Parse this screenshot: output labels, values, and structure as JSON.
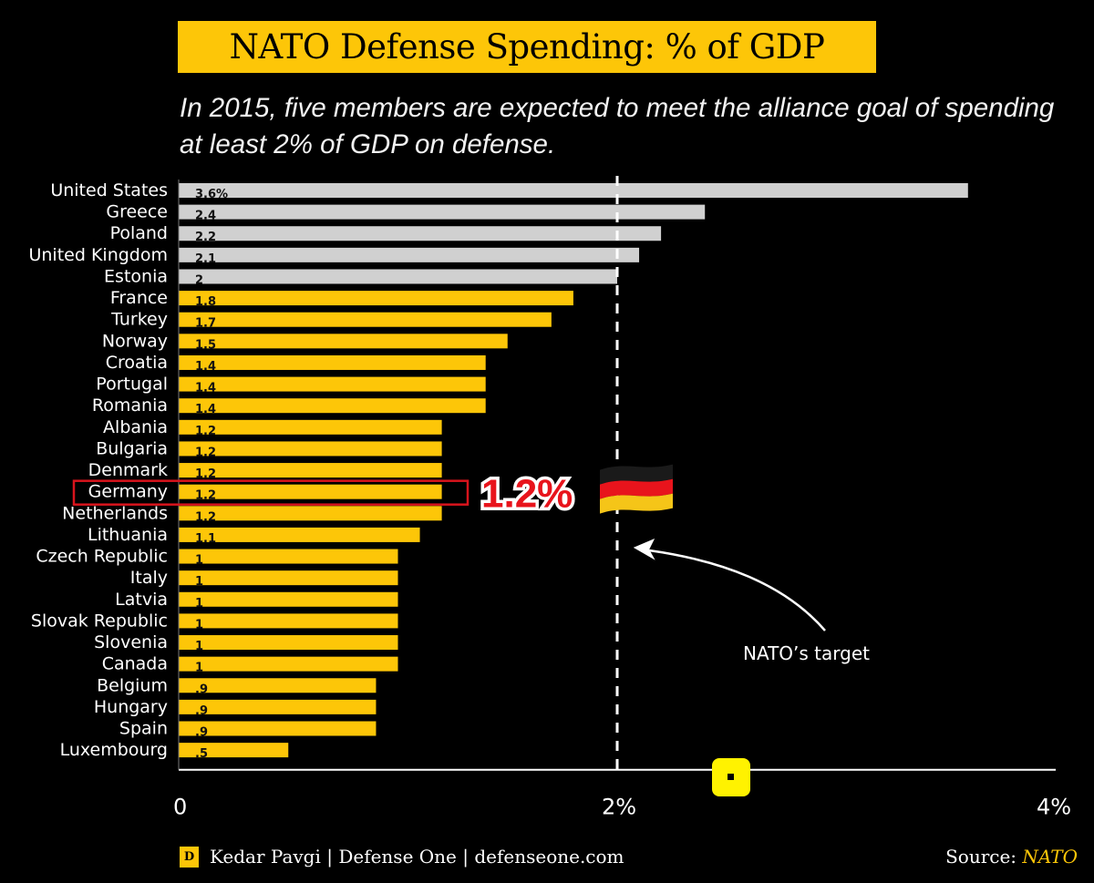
{
  "header": {
    "title": "NATO Defense Spending: % of GDP",
    "subtitle": "In 2015, five members are expected to meet the alliance goal of spending at least 2% of GDP on defense."
  },
  "colors": {
    "highlight_bar": "#fdc608",
    "meets_target_bar": "#d0d0d0",
    "background": "#000000",
    "callout_red": "#e8141c",
    "title_bg": "#fdc608"
  },
  "chart_data": {
    "type": "bar",
    "orientation": "horizontal",
    "title": "NATO Defense Spending: % of GDP",
    "subtitle": "In 2015, five members are expected to meet the alliance goal of spending at least 2% of GDP on defense.",
    "xlabel": "",
    "ylabel": "",
    "xlim": [
      0,
      4
    ],
    "x_ticks": [
      0,
      2,
      4
    ],
    "x_tick_labels": [
      "0",
      "2%",
      "4%"
    ],
    "grid": false,
    "reference_line": {
      "value": 2,
      "style": "dashed",
      "label": "NATO’s target"
    },
    "categories": [
      "United States",
      "Greece",
      "Poland",
      "United Kingdom",
      "Estonia",
      "France",
      "Turkey",
      "Norway",
      "Croatia",
      "Portugal",
      "Romania",
      "Albania",
      "Bulgaria",
      "Denmark",
      "Germany",
      "Netherlands",
      "Lithuania",
      "Czech Republic",
      "Italy",
      "Latvia",
      "Slovak Republic",
      "Slovenia",
      "Canada",
      "Belgium",
      "Hungary",
      "Spain",
      "Luxembourg"
    ],
    "values": [
      3.6,
      2.4,
      2.2,
      2.1,
      2.0,
      1.8,
      1.7,
      1.5,
      1.4,
      1.4,
      1.4,
      1.2,
      1.2,
      1.2,
      1.2,
      1.2,
      1.1,
      1.0,
      1.0,
      1.0,
      1.0,
      1.0,
      1.0,
      0.9,
      0.9,
      0.9,
      0.5
    ],
    "value_labels": [
      "3.6%",
      "2.4",
      "2.2",
      "2.1",
      "2",
      "1.8",
      "1.7",
      "1.5",
      "1.4",
      "1.4",
      "1.4",
      "1.2",
      "1.2",
      "1.2",
      "1.2",
      "1.2",
      "1.1",
      "1",
      "1",
      "1",
      "1",
      "1",
      "1",
      ".9",
      ".9",
      ".9",
      ".5"
    ],
    "meets_target": [
      true,
      true,
      true,
      true,
      true,
      false,
      false,
      false,
      false,
      false,
      false,
      false,
      false,
      false,
      false,
      false,
      false,
      false,
      false,
      false,
      false,
      false,
      false,
      false,
      false,
      false,
      false
    ],
    "highlight": {
      "category": "Germany",
      "callout": "1.2%",
      "flag_icon": "germany-flag"
    }
  },
  "footer": {
    "logo_letter": "D",
    "credit": "Kedar Pavgi | Defense One | defenseone.com",
    "source_label": "Source:",
    "source_name": "NATO"
  }
}
